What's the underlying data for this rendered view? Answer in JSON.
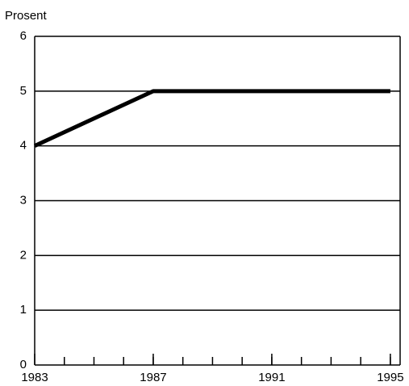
{
  "chart_data": {
    "type": "line",
    "ylabel": "Prosent",
    "x": [
      1983,
      1987,
      1995
    ],
    "series": [
      {
        "color": "#000000",
        "values": [
          4,
          5,
          5
        ]
      }
    ],
    "xlim": [
      1983,
      1995.33
    ],
    "xticks": [
      1983,
      1987,
      1991,
      1995
    ],
    "ylim": [
      0,
      6
    ],
    "yticks": [
      0,
      1,
      2,
      3,
      4,
      5,
      6
    ],
    "grid": true
  }
}
